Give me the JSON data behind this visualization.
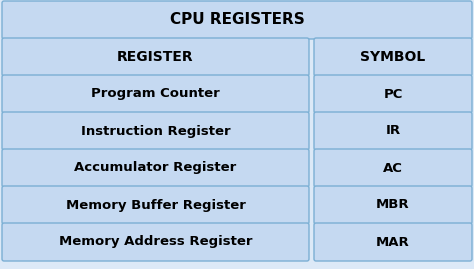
{
  "title": "CPU REGISTERS",
  "headers": [
    "REGISTER",
    "SYMBOL"
  ],
  "rows": [
    [
      "Program Counter",
      "PC"
    ],
    [
      "Instruction Register",
      "IR"
    ],
    [
      "Accumulator Register",
      "AC"
    ],
    [
      "Memory Buffer Register",
      "MBR"
    ],
    [
      "Memory Address Register",
      "MAR"
    ]
  ],
  "box_fill": "#c5d9f1",
  "box_edge": "#7bafd4",
  "text_color": "#000000",
  "title_fontsize": 11,
  "header_fontsize": 10,
  "row_fontsize": 9.5,
  "fig_bg": "#dce9f7",
  "outer_bg": "#b8cfe8"
}
